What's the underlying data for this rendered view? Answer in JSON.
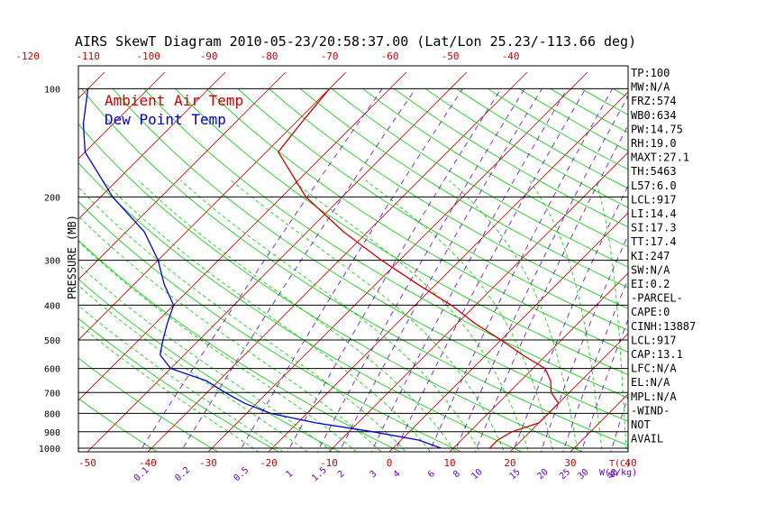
{
  "chart_data": {
    "type": "line",
    "title": "AIRS SkewT Diagram 2010-05-23/20:58:37.00 (Lat/Lon 25.23/-113.66 deg)",
    "ylabel": "PRESSURE (MB)",
    "xlabel_temp": "T(C)",
    "xlabel_mix": "W(g/kg)",
    "legend": [
      "Ambient Air Temp",
      "Dew Point Temp"
    ],
    "legend_placement": "top-left",
    "pressure_ticks": [
      "100",
      "200",
      "300",
      "400",
      "500",
      "600",
      "700",
      "800",
      "900",
      "1000"
    ],
    "pressure_values": [
      100,
      200,
      300,
      400,
      500,
      600,
      700,
      800,
      900,
      1000
    ],
    "top_temp_ticks": [
      "-120",
      "-110",
      "-100",
      "-90",
      "-80",
      "-70",
      "-60",
      "-50",
      "-40"
    ],
    "bottom_temp_ticks": [
      "-50",
      "-40",
      "-30",
      "-20",
      "-10",
      "0",
      "10",
      "20",
      "30",
      "40"
    ],
    "mixing_ratio_labels": [
      "0.1",
      "0.2",
      "0.5",
      "1",
      "1.5",
      "2",
      "3",
      "4",
      "6",
      "8",
      "10",
      "15",
      "20",
      "25",
      "30",
      "40"
    ],
    "series": [
      {
        "name": "Ambient Air Temp",
        "color": "#cc0000",
        "points": [
          {
            "p": 1000,
            "t": 16
          },
          {
            "p": 950,
            "t": 16
          },
          {
            "p": 900,
            "t": 17
          },
          {
            "p": 850,
            "t": 20
          },
          {
            "p": 800,
            "t": 20
          },
          {
            "p": 750,
            "t": 20
          },
          {
            "p": 700,
            "t": 17
          },
          {
            "p": 650,
            "t": 15
          },
          {
            "p": 600,
            "t": 12
          },
          {
            "p": 550,
            "t": 6
          },
          {
            "p": 500,
            "t": 0
          },
          {
            "p": 450,
            "t": -7
          },
          {
            "p": 400,
            "t": -14
          },
          {
            "p": 350,
            "t": -23
          },
          {
            "p": 300,
            "t": -33
          },
          {
            "p": 250,
            "t": -44
          },
          {
            "p": 200,
            "t": -56
          },
          {
            "p": 150,
            "t": -68
          },
          {
            "p": 125,
            "t": -69
          },
          {
            "p": 100,
            "t": -70
          }
        ]
      },
      {
        "name": "Dew Point Temp",
        "color": "#0000cc",
        "points": [
          {
            "p": 1000,
            "t": 8
          },
          {
            "p": 950,
            "t": 3
          },
          {
            "p": 900,
            "t": -6
          },
          {
            "p": 850,
            "t": -17
          },
          {
            "p": 800,
            "t": -26
          },
          {
            "p": 750,
            "t": -32
          },
          {
            "p": 700,
            "t": -37
          },
          {
            "p": 650,
            "t": -42
          },
          {
            "p": 600,
            "t": -50
          },
          {
            "p": 550,
            "t": -54
          },
          {
            "p": 500,
            "t": -56
          },
          {
            "p": 450,
            "t": -58
          },
          {
            "p": 400,
            "t": -60
          },
          {
            "p": 350,
            "t": -65
          },
          {
            "p": 300,
            "t": -70
          },
          {
            "p": 250,
            "t": -77
          },
          {
            "p": 200,
            "t": -88
          },
          {
            "p": 150,
            "t": -100
          },
          {
            "p": 125,
            "t": -105
          },
          {
            "p": 100,
            "t": -110
          }
        ]
      }
    ],
    "grid": true
  },
  "indices": [
    "TP:100",
    "MW:N/A",
    "FRZ:574",
    "WB0:634",
    "PW:14.75",
    "RH:19.0",
    "MAXT:27.1",
    "TH:5463",
    "L57:6.0",
    "LCL:917",
    "LI:14.4",
    "SI:17.3",
    "TT:17.4",
    "KI:247",
    "SW:N/A",
    "EI:0.2",
    "-PARCEL-",
    "CAPE:0",
    "CINH:13887",
    "LCL:917",
    "CAP:13.1",
    "LFC:N/A",
    "EL:N/A",
    "MPL:N/A",
    "-WIND-",
    "NOT",
    "AVAIL"
  ],
  "colors": {
    "isotherm": "#cc0000",
    "dry_adiabat": "#00cc00",
    "moist_adiabat": "#00cc00",
    "mixing_ratio": "#6600cc",
    "isobar": "#000000",
    "dewpoint": "#0000cc"
  }
}
